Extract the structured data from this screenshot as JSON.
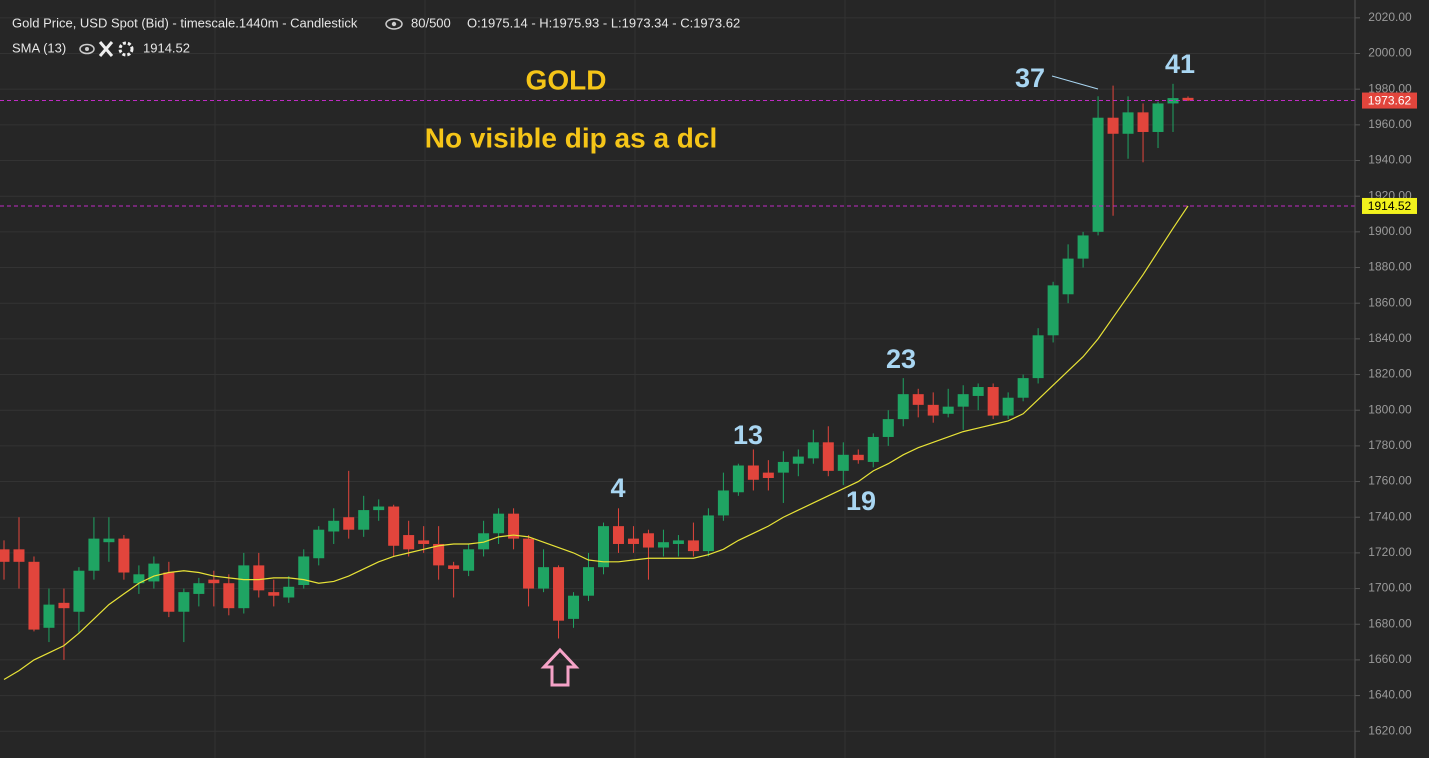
{
  "chart_data": {
    "type": "candlestick",
    "title": "Gold Price, USD Spot (Bid) - timescale.1440m - Candlestick",
    "bar_count_text": "80/500",
    "ohlc_text": "O:1975.14 - H:1975.93 - L:1973.34 - C:1973.62",
    "up_color": "#1fa463",
    "down_color": "#e2453c",
    "open": [
      1722,
      1722,
      1715,
      1678,
      1692,
      1687,
      1710,
      1726,
      1728,
      1703,
      1704,
      1709,
      1687,
      1697,
      1705,
      1703,
      1689,
      1713,
      1698,
      1695,
      1702,
      1717,
      1732,
      1740,
      1733,
      1744,
      1746,
      1730,
      1727,
      1725,
      1713,
      1710,
      1722,
      1731,
      1742,
      1728,
      1700,
      1712,
      1683,
      1696,
      1712,
      1735,
      1728,
      1731,
      1723,
      1725,
      1727,
      1721,
      1741,
      1754,
      1769,
      1765,
      1765,
      1770,
      1773,
      1782,
      1766,
      1775,
      1771,
      1785,
      1795,
      1809,
      1803,
      1798,
      1802,
      1808,
      1813,
      1797,
      1807,
      1818,
      1842,
      1865,
      1885,
      1900,
      1964,
      1955,
      1967,
      1956,
      1972,
      1975.14
    ],
    "high": [
      1727,
      1740,
      1718,
      1700,
      1700,
      1712,
      1740,
      1740,
      1730,
      1713,
      1718,
      1715,
      1700,
      1706,
      1710,
      1708,
      1720,
      1720,
      1705,
      1707,
      1722,
      1735,
      1745,
      1766,
      1752,
      1750,
      1747,
      1738,
      1735,
      1735,
      1715,
      1725,
      1738,
      1745,
      1745,
      1730,
      1722,
      1713,
      1698,
      1720,
      1737,
      1745,
      1735,
      1733,
      1733,
      1730,
      1737,
      1745,
      1765,
      1770,
      1778,
      1772,
      1777,
      1778,
      1789,
      1791,
      1782,
      1778,
      1787,
      1800,
      1818,
      1812,
      1810,
      1812,
      1814,
      1815,
      1815,
      1810,
      1820,
      1846,
      1872,
      1893,
      1900,
      1976,
      1982,
      1976,
      1972,
      1973,
      1983,
      1975.93
    ],
    "low": [
      1705,
      1700,
      1676,
      1670,
      1660,
      1675,
      1705,
      1715,
      1705,
      1697,
      1700,
      1684,
      1670,
      1690,
      1690,
      1685,
      1686,
      1695,
      1690,
      1692,
      1700,
      1713,
      1725,
      1728,
      1729,
      1738,
      1718,
      1718,
      1720,
      1705,
      1695,
      1707,
      1718,
      1725,
      1722,
      1690,
      1698,
      1672,
      1678,
      1693,
      1708,
      1720,
      1720,
      1705,
      1718,
      1718,
      1718,
      1718,
      1738,
      1752,
      1755,
      1755,
      1748,
      1763,
      1770,
      1763,
      1758,
      1770,
      1768,
      1780,
      1791,
      1796,
      1793,
      1796,
      1789,
      1800,
      1795,
      1795,
      1805,
      1815,
      1838,
      1860,
      1880,
      1898,
      1909,
      1941,
      1939,
      1947,
      1956,
      1973.34
    ],
    "close": [
      1715,
      1715,
      1677,
      1691,
      1689,
      1710,
      1728,
      1728,
      1709,
      1708,
      1714,
      1687,
      1698,
      1703,
      1703,
      1689,
      1713,
      1699,
      1696,
      1701,
      1718,
      1733,
      1738,
      1733,
      1744,
      1746,
      1724,
      1722,
      1725,
      1713,
      1711,
      1722,
      1731,
      1742,
      1728,
      1700,
      1712,
      1682,
      1696,
      1712,
      1735,
      1725,
      1725,
      1723,
      1726,
      1727,
      1721,
      1741,
      1755,
      1769,
      1761,
      1762,
      1771,
      1774,
      1782,
      1766,
      1775,
      1772,
      1785,
      1795,
      1809,
      1803,
      1797,
      1802,
      1809,
      1813,
      1797,
      1807,
      1818,
      1842,
      1870,
      1885,
      1898,
      1964,
      1955,
      1967,
      1956,
      1972,
      1975,
      1973.62
    ],
    "sma": {
      "name": "SMA (13)",
      "color": "#e8e337",
      "values": [
        1649,
        1654,
        1660,
        1664,
        1668,
        1675,
        1683,
        1691,
        1697,
        1703,
        1707,
        1709,
        1710,
        1709,
        1707,
        1706,
        1705,
        1705,
        1706,
        1706,
        1705,
        1703,
        1704,
        1707,
        1711,
        1715,
        1718,
        1720,
        1722,
        1724,
        1725,
        1725,
        1726,
        1729,
        1730,
        1729,
        1726,
        1723,
        1720,
        1716,
        1715,
        1715,
        1716,
        1717,
        1717,
        1717,
        1717,
        1719,
        1722,
        1727,
        1731,
        1735,
        1740,
        1744,
        1748,
        1752,
        1756,
        1760,
        1766,
        1770,
        1775,
        1779,
        1782,
        1785,
        1788,
        1790,
        1792,
        1794,
        1798,
        1806,
        1814,
        1822,
        1830,
        1840,
        1852,
        1864,
        1876,
        1889,
        1902,
        1914.52
      ]
    },
    "price_lines": [
      {
        "value": 1973.62,
        "color": "#e2453c",
        "text_color": "#ffffff"
      },
      {
        "value": 1914.52,
        "color": "#f2f21d",
        "text_color": "#000000"
      }
    ],
    "ylim": [
      1605,
      2030
    ],
    "yticks": [
      {
        "value": 1620,
        "label": "1620.00"
      },
      {
        "value": 1640,
        "label": "1640.00"
      },
      {
        "value": 1660,
        "label": "1660.00"
      },
      {
        "value": 1680,
        "label": "1680.00"
      },
      {
        "value": 1700,
        "label": "1700.00"
      },
      {
        "value": 1720,
        "label": "1720.00"
      },
      {
        "value": 1740,
        "label": "1740.00"
      },
      {
        "value": 1760,
        "label": "1760.00"
      },
      {
        "value": 1780,
        "label": "1780.00"
      },
      {
        "value": 1800,
        "label": "1800.00"
      },
      {
        "value": 1820,
        "label": "1820.00"
      },
      {
        "value": 1840,
        "label": "1840.00"
      },
      {
        "value": 1860,
        "label": "1860.00"
      },
      {
        "value": 1880,
        "label": "1880.00"
      },
      {
        "value": 1900,
        "label": "1900.00"
      },
      {
        "value": 1920,
        "label": "1920.00"
      },
      {
        "value": 1940,
        "label": "1940.00"
      },
      {
        "value": 1960,
        "label": "1960.00"
      },
      {
        "value": 1980,
        "label": "1980.00"
      },
      {
        "value": 2000,
        "label": "2000.00"
      },
      {
        "value": 2020,
        "label": "2020.00"
      }
    ],
    "grid": true,
    "annotations": [
      "GOLD",
      "No visible dip as a dcl",
      "4",
      "13",
      "19",
      "23",
      "37",
      "41"
    ]
  }
}
